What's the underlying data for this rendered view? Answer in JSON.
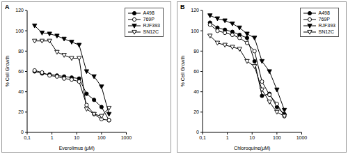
{
  "chart_data": [
    {
      "type": "line",
      "title": "A",
      "x_label": "Everolimus (μM)",
      "y_label": "% Cell Growth",
      "log": "x",
      "legend": "upper right",
      "x": [
        0.2,
        0.4,
        0.8,
        1.6,
        3.1,
        6.25,
        12.5,
        25,
        50,
        100,
        200
      ],
      "xlim": [
        0.1,
        1000
      ],
      "xticks": [
        {
          "value": 0.1,
          "label": "0,1"
        },
        1,
        10,
        100,
        1000
      ],
      "ylim": [
        0,
        120
      ],
      "yticks": [
        0,
        20,
        40,
        60,
        80,
        100,
        120
      ],
      "series": [
        {
          "name": "A498",
          "color": "#000000",
          "marker": "circle",
          "values": [
            60,
            58,
            57,
            56,
            55,
            54,
            53,
            38,
            32,
            25,
            12
          ]
        },
        {
          "name": "769P",
          "color": "#000000",
          "marker": "circle_open",
          "values": [
            61,
            59,
            56,
            55,
            53,
            52,
            50,
            27,
            18,
            13,
            12
          ]
        },
        {
          "name": "RJF393",
          "color": "#000000",
          "marker": "triangle",
          "values": [
            105,
            98,
            97,
            95,
            92,
            89,
            86,
            60,
            55,
            45,
            18
          ]
        },
        {
          "name": "SN12C",
          "color": "#000000",
          "marker": "triangle_open",
          "values": [
            90,
            90,
            90,
            79,
            76,
            73,
            73,
            23,
            18,
            16,
            24
          ]
        }
      ]
    },
    {
      "type": "line",
      "title": "B",
      "x_label": "Chloroquine(μM)",
      "y_label": "% Cell Growth",
      "log": "x",
      "legend": "upper right",
      "x": [
        0.2,
        0.4,
        0.8,
        1.6,
        3.1,
        6.25,
        12.5,
        25,
        50,
        100,
        200
      ],
      "xlim": [
        0.1,
        1000
      ],
      "xticks": [
        {
          "value": 0.1,
          "label": "0,1"
        },
        1,
        10,
        100,
        1000
      ],
      "ylim": [
        0,
        120
      ],
      "yticks": [
        0,
        20,
        40,
        60,
        80,
        100,
        120
      ],
      "series": [
        {
          "name": "A498",
          "color": "#000000",
          "marker": "circle",
          "values": [
            108,
            103,
            101,
            99,
            96,
            93,
            70,
            36,
            38,
            25,
            18
          ]
        },
        {
          "name": "769P",
          "color": "#000000",
          "marker": "circle_open",
          "values": [
            106,
            100,
            98,
            96,
            93,
            88,
            80,
            50,
            37,
            28,
            16
          ]
        },
        {
          "name": "RJF393",
          "color": "#000000",
          "marker": "triangle",
          "values": [
            115,
            112,
            110,
            107,
            103,
            97,
            93,
            70,
            60,
            42,
            22
          ]
        },
        {
          "name": "SN12C",
          "color": "#000000",
          "marker": "triangle_open",
          "values": [
            95,
            88,
            86,
            84,
            82,
            70,
            65,
            42,
            30,
            20,
            16
          ]
        }
      ]
    }
  ]
}
